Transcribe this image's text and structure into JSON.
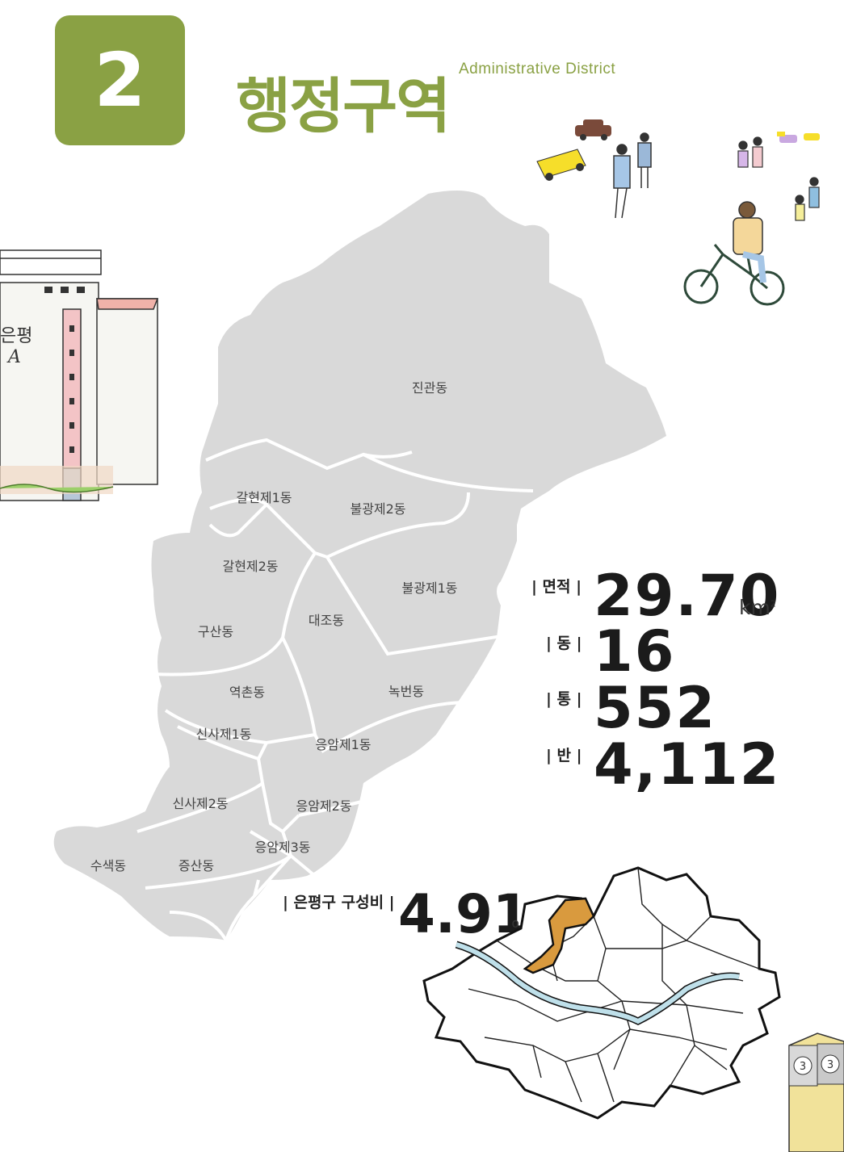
{
  "header": {
    "number": "2",
    "title": "행정구역",
    "subtitle": "Administrative District"
  },
  "building_sign": {
    "line1": "은평",
    "line2": "A"
  },
  "map": {
    "districts": [
      {
        "id": "jingwan",
        "name": "진관동"
      },
      {
        "id": "galhyeon1",
        "name": "갈현제1동"
      },
      {
        "id": "bulgwang2",
        "name": "불광제2동"
      },
      {
        "id": "galhyeon2",
        "name": "갈현제2동"
      },
      {
        "id": "bulgwang1",
        "name": "불광제1동"
      },
      {
        "id": "daejo",
        "name": "대조동"
      },
      {
        "id": "gusan",
        "name": "구산동"
      },
      {
        "id": "yeokchon",
        "name": "역촌동"
      },
      {
        "id": "nokbeon",
        "name": "녹번동"
      },
      {
        "id": "sinsa1",
        "name": "신사제1동"
      },
      {
        "id": "eungam1",
        "name": "응암제1동"
      },
      {
        "id": "sinsa2",
        "name": "신사제2동"
      },
      {
        "id": "eungam2",
        "name": "응암제2동"
      },
      {
        "id": "eungam3",
        "name": "응암제3동"
      },
      {
        "id": "susaek",
        "name": "수색동"
      },
      {
        "id": "jeungsan",
        "name": "증산동"
      }
    ],
    "fill_color": "#d9d9d9",
    "border_color": "#ffffff"
  },
  "stats": {
    "area_label": "| 면적 |",
    "area_value": "29.70",
    "area_unit": "km",
    "area_unit_sup": "2",
    "dong_label": "| 동 |",
    "dong_value": "16",
    "tong_label": "| 통 |",
    "tong_value": "552",
    "ban_label": "| 반 |",
    "ban_value": "4,112"
  },
  "ratio": {
    "label": "| 은평구 구성비 |",
    "value": "4.91",
    "unit": "%"
  },
  "seoul_map": {
    "highlight_color": "#d99a3e",
    "river_color": "#bfe0ea"
  },
  "colors": {
    "accent": "#8aa144"
  },
  "corner_signs": [
    "3",
    "3"
  ]
}
